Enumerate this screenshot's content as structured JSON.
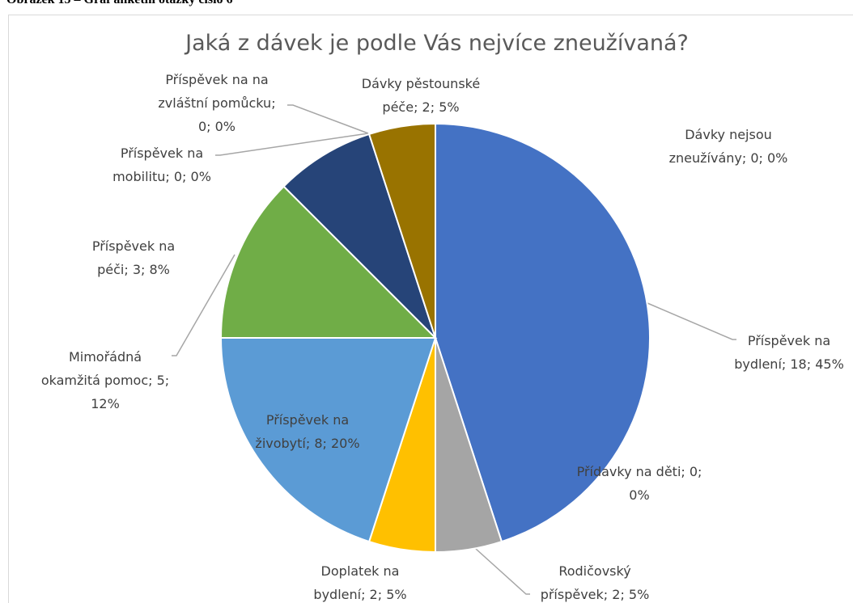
{
  "caption": "Obrázek 15 – Graf anketní otázky číslo 6",
  "chart_data": {
    "type": "pie",
    "title": "Jaká z dávek je podle Vás nejvíce zneužívaná?",
    "categories": [
      "Příspěvek na bydlení",
      "Přídavky na děti",
      "Rodičovský příspěvek",
      "Doplatek na bydlení",
      "Příspěvek na živobytí",
      "Mimořádná okamžitá pomoc",
      "Příspěvek na péči",
      "Příspěvek na mobilitu",
      "Příspěvek na na zvláštní pomůcku",
      "Dávky pěstounské péče",
      "Dávky nejsou zneužívány"
    ],
    "values": [
      18,
      0,
      2,
      2,
      8,
      5,
      3,
      0,
      0,
      2,
      0
    ],
    "labels": [
      "Příspěvek na bydlení; 18; 45%",
      "Přídavky na děti; 0; 0%",
      "Rodičovský příspěvek; 2; 5%",
      "Doplatek na bydlení; 2; 5%",
      "Příspěvek na živobytí; 8; 20%",
      "Mimořádná okamžitá pomoc; 5; 12%",
      "Příspěvek na péči; 3; 8%",
      "Příspěvek na mobilitu; 0; 0%",
      "Příspěvek na na zvláštní pomůcku; 0; 0%",
      "Dávky pěstounské péče; 2; 5%",
      "Dávky nejsou zneužívány; 0; 0%"
    ],
    "colors": [
      "#4472c4",
      "#ed7d31",
      "#a5a5a5",
      "#ffc000",
      "#5b9bd5",
      "#70ad47",
      "#264478",
      "#9e480e",
      "#636363",
      "#997300",
      "#2f5597"
    ]
  }
}
